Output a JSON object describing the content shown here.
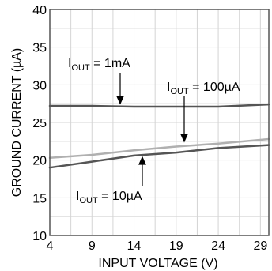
{
  "chart_data": {
    "type": "line",
    "title": "",
    "xlabel": "INPUT VOLTAGE (V)",
    "ylabel": "GROUND CURRENT (µA)",
    "xlim": [
      4,
      30
    ],
    "ylim": [
      10,
      40
    ],
    "xticks": [
      4,
      9,
      14,
      19,
      24,
      29
    ],
    "yticks": [
      10,
      15,
      20,
      25,
      30,
      35,
      40
    ],
    "grid": true,
    "legend": "none",
    "series": [
      {
        "name": "IOUT = 1mA",
        "color": "#555555",
        "x": [
          4,
          9,
          14,
          19,
          24,
          30
        ],
        "y": [
          27.2,
          27.2,
          27.1,
          27.1,
          27.1,
          27.4
        ]
      },
      {
        "name": "IOUT = 100µA",
        "color": "#b0b0b0",
        "x": [
          4,
          9,
          14,
          19,
          24,
          30
        ],
        "y": [
          20.3,
          20.7,
          21.3,
          21.8,
          22.2,
          22.8
        ]
      },
      {
        "name": "IOUT = 10µA",
        "color": "#555555",
        "x": [
          4,
          9,
          14,
          19,
          24,
          30
        ],
        "y": [
          19.0,
          19.8,
          20.6,
          21.0,
          21.6,
          22.0
        ]
      }
    ],
    "annotations": [
      {
        "main": "I",
        "sub": "OUT",
        "rest": " = 1mA"
      },
      {
        "main": "I",
        "sub": "OUT",
        "rest": " = 100µA"
      },
      {
        "main": "I",
        "sub": "OUT",
        "rest": " = 10µA"
      }
    ]
  }
}
